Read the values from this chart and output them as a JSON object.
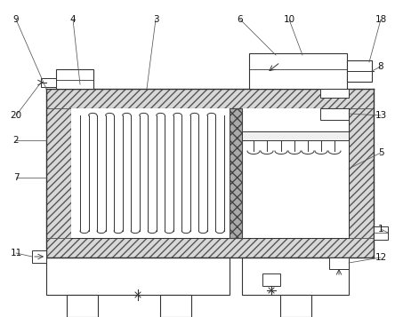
{
  "bg_color": "#ffffff",
  "lc": "#333333",
  "figsize": [
    4.44,
    3.57
  ],
  "dpi": 100,
  "hatch_fill": "#d8d8d8",
  "hatch_dark": "#999999"
}
